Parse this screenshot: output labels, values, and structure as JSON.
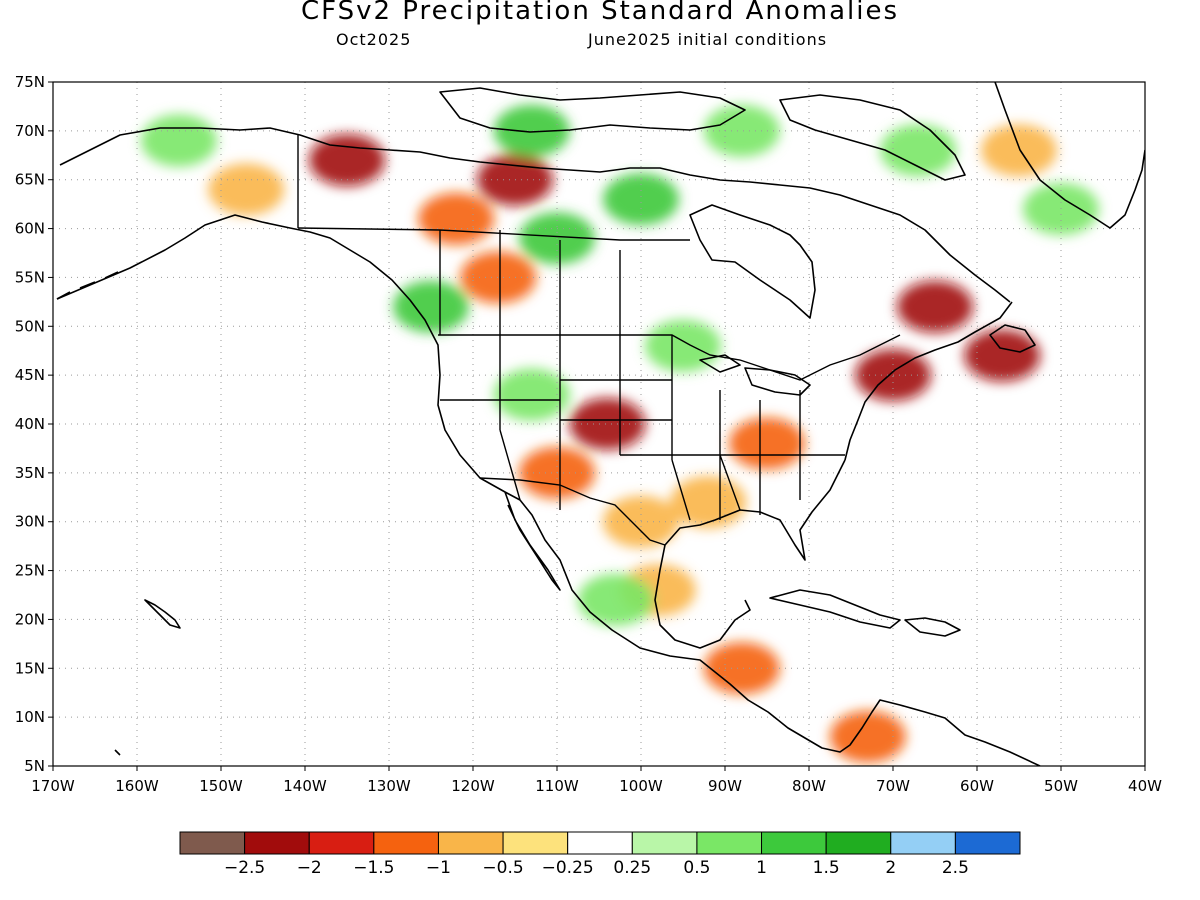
{
  "title": "CFSv2 Precipitation Standard Anomalies",
  "subtitle_left": "Oct2025",
  "subtitle_right": "June2025 initial conditions",
  "map": {
    "lon_range": [
      -170,
      -40
    ],
    "lat_range": [
      5,
      75
    ],
    "lat_ticks": [
      {
        "value": 75,
        "label": "75N"
      },
      {
        "value": 70,
        "label": "70N"
      },
      {
        "value": 65,
        "label": "65N"
      },
      {
        "value": 60,
        "label": "60N"
      },
      {
        "value": 55,
        "label": "55N"
      },
      {
        "value": 50,
        "label": "50N"
      },
      {
        "value": 45,
        "label": "45N"
      },
      {
        "value": 40,
        "label": "40N"
      },
      {
        "value": 35,
        "label": "35N"
      },
      {
        "value": 30,
        "label": "30N"
      },
      {
        "value": 25,
        "label": "25N"
      },
      {
        "value": 20,
        "label": "20N"
      },
      {
        "value": 15,
        "label": "15N"
      },
      {
        "value": 10,
        "label": "10N"
      },
      {
        "value": 5,
        "label": "5N"
      }
    ],
    "lon_ticks": [
      {
        "value": -170,
        "label": "170W"
      },
      {
        "value": -160,
        "label": "160W"
      },
      {
        "value": -150,
        "label": "150W"
      },
      {
        "value": -140,
        "label": "140W"
      },
      {
        "value": -130,
        "label": "130W"
      },
      {
        "value": -120,
        "label": "120W"
      },
      {
        "value": -110,
        "label": "110W"
      },
      {
        "value": -100,
        "label": "100W"
      },
      {
        "value": -90,
        "label": "90W"
      },
      {
        "value": -80,
        "label": "80W"
      },
      {
        "value": -70,
        "label": "70W"
      },
      {
        "value": -60,
        "label": "60W"
      },
      {
        "value": -50,
        "label": "50W"
      },
      {
        "value": -40,
        "label": "40W"
      }
    ],
    "grid": "dotted",
    "anomaly_regions": [
      {
        "lon": -155,
        "lat": 69,
        "level": 0.75
      },
      {
        "lon": -147,
        "lat": 64,
        "level": -0.75
      },
      {
        "lon": -135,
        "lat": 67,
        "level": -2.25
      },
      {
        "lon": -115,
        "lat": 65,
        "level": -2.25
      },
      {
        "lon": -122,
        "lat": 61,
        "level": -1.25
      },
      {
        "lon": -110,
        "lat": 59,
        "level": 1.25
      },
      {
        "lon": -100,
        "lat": 63,
        "level": 1.25
      },
      {
        "lon": -125,
        "lat": 52,
        "level": 1.25
      },
      {
        "lon": -117,
        "lat": 55,
        "level": -1.25
      },
      {
        "lon": -113,
        "lat": 70,
        "level": 1.25
      },
      {
        "lon": -88,
        "lat": 70,
        "level": 0.75
      },
      {
        "lon": -67,
        "lat": 68,
        "level": 0.75
      },
      {
        "lon": -65,
        "lat": 52,
        "level": -2.25
      },
      {
        "lon": -70,
        "lat": 45,
        "level": -2.25
      },
      {
        "lon": -57,
        "lat": 47,
        "level": -2.25
      },
      {
        "lon": -104,
        "lat": 40,
        "level": -2.25
      },
      {
        "lon": -110,
        "lat": 35,
        "level": -1.25
      },
      {
        "lon": -85,
        "lat": 38,
        "level": -1.25
      },
      {
        "lon": -92,
        "lat": 32,
        "level": -0.75
      },
      {
        "lon": -100,
        "lat": 30,
        "level": -0.75
      },
      {
        "lon": -113,
        "lat": 43,
        "level": 0.75
      },
      {
        "lon": -95,
        "lat": 48,
        "level": 0.75
      },
      {
        "lon": -98,
        "lat": 23,
        "level": -0.75
      },
      {
        "lon": -88,
        "lat": 15,
        "level": -1.25
      },
      {
        "lon": -103,
        "lat": 22,
        "level": 0.75
      },
      {
        "lon": -73,
        "lat": 8,
        "level": -1.25
      },
      {
        "lon": -55,
        "lat": 68,
        "level": -0.75
      },
      {
        "lon": -50,
        "lat": 62,
        "level": 0.75
      }
    ]
  },
  "colorbar": {
    "colors": [
      "#7f5a4d",
      "#a10c0c",
      "#d81e12",
      "#f5620f",
      "#f9b549",
      "#fde27c",
      "#ffffff",
      "#b9f6a8",
      "#7ae766",
      "#3dc93c",
      "#20ad20",
      "#94cff5",
      "#1c6ad4"
    ],
    "labels": [
      "−2.5",
      "−2",
      "−1.5",
      "−1",
      "−0.5",
      "−0.25",
      "0.25",
      "0.5",
      "1",
      "1.5",
      "2",
      "2.5"
    ]
  }
}
